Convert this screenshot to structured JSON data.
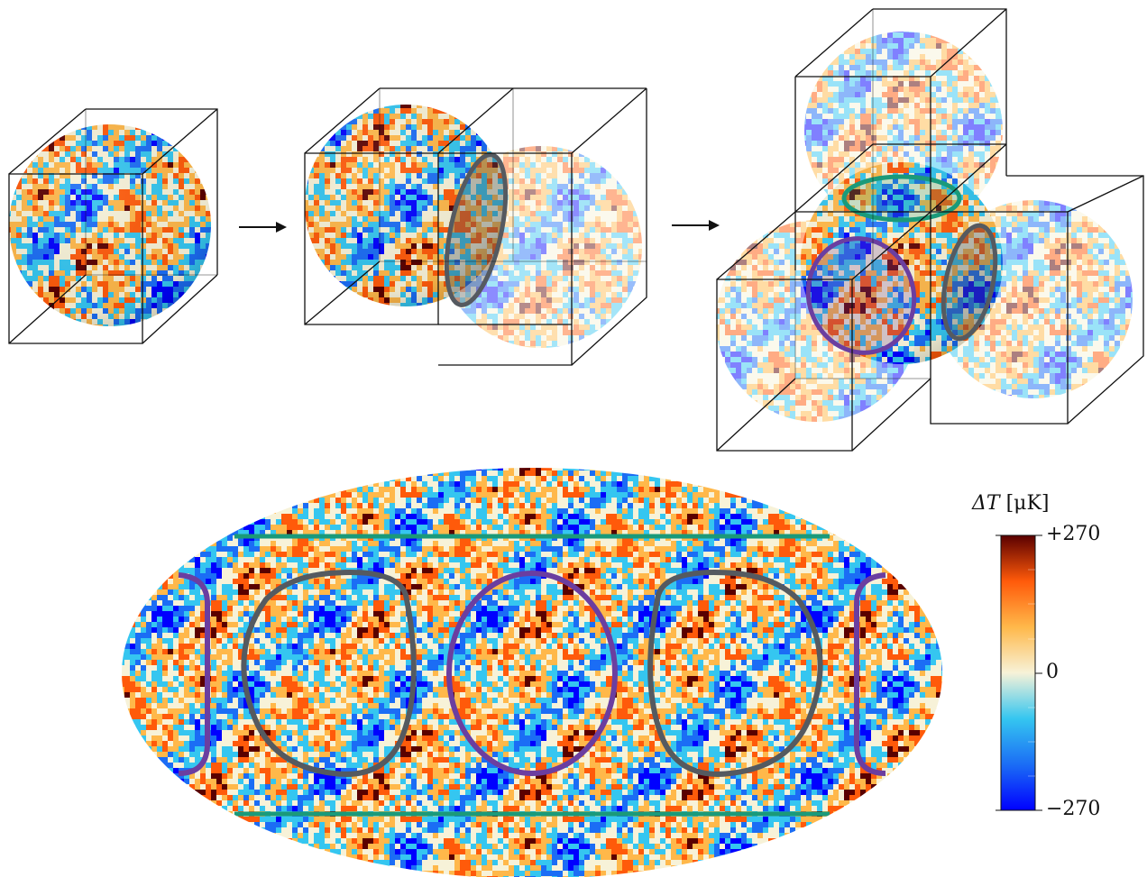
{
  "panels": [
    {
      "name": "single-cube",
      "spheres": 1
    },
    {
      "name": "two-cubes",
      "spheres": 2
    },
    {
      "name": "four-cubes",
      "spheres": 4
    }
  ],
  "arrows": [
    "single-to-two",
    "two-to-four"
  ],
  "colorbar": {
    "title_prefix": "ΔT",
    "title_unit": "[μK]",
    "max_label": "+270",
    "mid_label": "0",
    "min_label": "−270",
    "max_value": 270,
    "min_value": -270,
    "colors": [
      "#0000ff",
      "#1b6df5",
      "#35c6f0",
      "#f7f2d8",
      "#ffb84a",
      "#ff5a0a",
      "#5a0000"
    ]
  },
  "circle_colors": {
    "green": "#1a9a7a",
    "purple": "#6b3ea0",
    "gray": "#555a60"
  },
  "skymap": {
    "projection": "mollweide",
    "circles": [
      "top-band",
      "bottom-band",
      "center-circle",
      "left-circle",
      "right-circle",
      "left-edge-arc",
      "right-edge-arc"
    ]
  }
}
